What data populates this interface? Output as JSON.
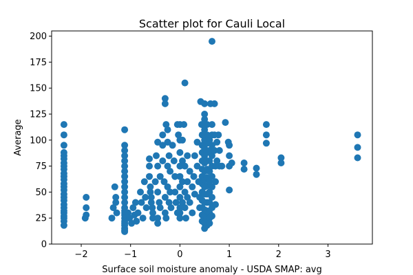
{
  "chart_data": {
    "type": "scatter",
    "title": "Scatter plot for Cauli Local",
    "xlabel": "Surface soil moisture anomaly  - USDA SMAP: avg",
    "ylabel": "Average",
    "xlim": [
      -2.6,
      3.9
    ],
    "ylim": [
      0,
      205
    ],
    "xticks": [
      -2,
      -1,
      0,
      1,
      2,
      3
    ],
    "xtick_labels": [
      "−2",
      "−1",
      "0",
      "1",
      "2",
      "3"
    ],
    "yticks": [
      0,
      25,
      50,
      75,
      100,
      125,
      150,
      175,
      200
    ],
    "ytick_labels": [
      "0",
      "25",
      "50",
      "75",
      "100",
      "125",
      "150",
      "175",
      "200"
    ],
    "grid": false,
    "marker_color": "#1f77b4",
    "series": [
      {
        "points": [
          [
            -2.35,
            115
          ],
          [
            -2.35,
            105
          ],
          [
            -2.35,
            95
          ],
          [
            -2.35,
            88
          ],
          [
            -2.35,
            85
          ],
          [
            -2.35,
            82
          ],
          [
            -2.35,
            78
          ],
          [
            -2.35,
            75
          ],
          [
            -2.35,
            72
          ],
          [
            -2.35,
            68
          ],
          [
            -2.35,
            65
          ],
          [
            -2.35,
            62
          ],
          [
            -2.35,
            58
          ],
          [
            -2.35,
            55
          ],
          [
            -2.35,
            52
          ],
          [
            -2.35,
            48
          ],
          [
            -2.35,
            45
          ],
          [
            -2.35,
            42
          ],
          [
            -2.35,
            38
          ],
          [
            -2.35,
            35
          ],
          [
            -2.35,
            32
          ],
          [
            -2.35,
            30
          ],
          [
            -2.35,
            27
          ],
          [
            -2.35,
            25
          ],
          [
            -2.35,
            22
          ],
          [
            -2.35,
            18
          ],
          [
            -1.9,
            45
          ],
          [
            -1.9,
            35
          ],
          [
            -1.9,
            28
          ],
          [
            -1.92,
            25
          ],
          [
            -1.38,
            25
          ],
          [
            -1.35,
            35
          ],
          [
            -1.32,
            55
          ],
          [
            -1.3,
            45
          ],
          [
            -1.3,
            40
          ],
          [
            -1.28,
            30
          ],
          [
            -1.12,
            110
          ],
          [
            -1.12,
            95
          ],
          [
            -1.12,
            90
          ],
          [
            -1.12,
            85
          ],
          [
            -1.12,
            80
          ],
          [
            -1.12,
            75
          ],
          [
            -1.12,
            70
          ],
          [
            -1.12,
            65
          ],
          [
            -1.12,
            60
          ],
          [
            -1.12,
            55
          ],
          [
            -1.12,
            50
          ],
          [
            -1.12,
            45
          ],
          [
            -1.12,
            40
          ],
          [
            -1.12,
            35
          ],
          [
            -1.12,
            32
          ],
          [
            -1.12,
            30
          ],
          [
            -1.12,
            28
          ],
          [
            -1.12,
            25
          ],
          [
            -1.12,
            22
          ],
          [
            -1.12,
            20
          ],
          [
            -1.12,
            18
          ],
          [
            -1.12,
            15
          ],
          [
            -1.12,
            13
          ],
          [
            -1.12,
            12
          ],
          [
            -1.05,
            30
          ],
          [
            -1.02,
            25
          ],
          [
            -0.98,
            20
          ],
          [
            -0.95,
            35
          ],
          [
            -0.92,
            28
          ],
          [
            -0.9,
            40
          ],
          [
            -0.88,
            22
          ],
          [
            -0.85,
            30
          ],
          [
            -0.8,
            50
          ],
          [
            -0.78,
            40
          ],
          [
            -0.75,
            25
          ],
          [
            -0.72,
            60
          ],
          [
            -0.7,
            45
          ],
          [
            -0.68,
            35
          ],
          [
            -0.62,
            82
          ],
          [
            -0.62,
            75
          ],
          [
            -0.62,
            65
          ],
          [
            -0.6,
            55
          ],
          [
            -0.6,
            50
          ],
          [
            -0.58,
            45
          ],
          [
            -0.58,
            40
          ],
          [
            -0.56,
            35
          ],
          [
            -0.55,
            30
          ],
          [
            -0.55,
            25
          ],
          [
            -0.5,
            60
          ],
          [
            -0.48,
            85
          ],
          [
            -0.45,
            98
          ],
          [
            -0.45,
            75
          ],
          [
            -0.45,
            50
          ],
          [
            -0.45,
            25
          ],
          [
            -0.45,
            20
          ],
          [
            -0.42,
            40
          ],
          [
            -0.4,
            65
          ],
          [
            -0.4,
            35
          ],
          [
            -0.35,
            105
          ],
          [
            -0.35,
            95
          ],
          [
            -0.35,
            80
          ],
          [
            -0.32,
            60
          ],
          [
            -0.3,
            45
          ],
          [
            -0.3,
            30
          ],
          [
            -0.28,
            25
          ],
          [
            -0.25,
            75
          ],
          [
            -0.25,
            55
          ],
          [
            -0.22,
            40
          ],
          [
            -0.3,
            140
          ],
          [
            -0.3,
            135
          ],
          [
            -0.28,
            115
          ],
          [
            -0.25,
            110
          ],
          [
            -0.25,
            98
          ],
          [
            -0.22,
            85
          ],
          [
            -0.2,
            70
          ],
          [
            -0.2,
            50
          ],
          [
            -0.18,
            35
          ],
          [
            -0.15,
            95
          ],
          [
            -0.12,
            80
          ],
          [
            -0.1,
            65
          ],
          [
            -0.1,
            50
          ],
          [
            -0.08,
            40
          ],
          [
            -0.05,
            30
          ],
          [
            -0.05,
            115
          ],
          [
            -0.03,
            105
          ],
          [
            0.0,
            115
          ],
          [
            0.0,
            100
          ],
          [
            0.0,
            88
          ],
          [
            0.0,
            75
          ],
          [
            0.0,
            65
          ],
          [
            0.0,
            55
          ],
          [
            0.0,
            45
          ],
          [
            0.0,
            35
          ],
          [
            0.0,
            30
          ],
          [
            0.0,
            25
          ],
          [
            0.05,
            100
          ],
          [
            0.05,
            80
          ],
          [
            0.05,
            60
          ],
          [
            0.05,
            40
          ],
          [
            0.08,
            115
          ],
          [
            0.1,
            155
          ],
          [
            0.1,
            75
          ],
          [
            0.1,
            50
          ],
          [
            0.1,
            35
          ],
          [
            0.12,
            25
          ],
          [
            0.15,
            85
          ],
          [
            0.15,
            60
          ],
          [
            0.15,
            45
          ],
          [
            0.2,
            70
          ],
          [
            0.2,
            40
          ],
          [
            0.25,
            55
          ],
          [
            0.25,
            30
          ],
          [
            0.28,
            65
          ],
          [
            0.3,
            85
          ],
          [
            0.3,
            48
          ],
          [
            0.35,
            98
          ],
          [
            0.35,
            75
          ],
          [
            0.38,
            60
          ],
          [
            0.4,
            45
          ],
          [
            0.4,
            35
          ],
          [
            0.42,
            137
          ],
          [
            0.44,
            115
          ],
          [
            0.45,
            105
          ],
          [
            0.45,
            95
          ],
          [
            0.45,
            88
          ],
          [
            0.45,
            80
          ],
          [
            0.45,
            72
          ],
          [
            0.45,
            65
          ],
          [
            0.45,
            58
          ],
          [
            0.45,
            50
          ],
          [
            0.45,
            42
          ],
          [
            0.45,
            35
          ],
          [
            0.45,
            28
          ],
          [
            0.45,
            22
          ],
          [
            0.5,
            135
          ],
          [
            0.5,
            125
          ],
          [
            0.5,
            120
          ],
          [
            0.5,
            110
          ],
          [
            0.5,
            100
          ],
          [
            0.5,
            92
          ],
          [
            0.5,
            85
          ],
          [
            0.5,
            78
          ],
          [
            0.5,
            70
          ],
          [
            0.5,
            62
          ],
          [
            0.5,
            55
          ],
          [
            0.5,
            48
          ],
          [
            0.5,
            40
          ],
          [
            0.5,
            33
          ],
          [
            0.5,
            27
          ],
          [
            0.5,
            20
          ],
          [
            0.5,
            15
          ],
          [
            0.55,
            115
          ],
          [
            0.55,
            105
          ],
          [
            0.55,
            97
          ],
          [
            0.55,
            88
          ],
          [
            0.55,
            80
          ],
          [
            0.55,
            72
          ],
          [
            0.55,
            64
          ],
          [
            0.55,
            56
          ],
          [
            0.55,
            48
          ],
          [
            0.55,
            40
          ],
          [
            0.55,
            32
          ],
          [
            0.55,
            25
          ],
          [
            0.55,
            18
          ],
          [
            0.6,
            100
          ],
          [
            0.6,
            90
          ],
          [
            0.6,
            80
          ],
          [
            0.6,
            70
          ],
          [
            0.6,
            60
          ],
          [
            0.6,
            50
          ],
          [
            0.6,
            40
          ],
          [
            0.6,
            30
          ],
          [
            0.6,
            25
          ],
          [
            0.6,
            20
          ],
          [
            0.62,
            135
          ],
          [
            0.65,
            195
          ],
          [
            0.65,
            115
          ],
          [
            0.65,
            105
          ],
          [
            0.65,
            95
          ],
          [
            0.65,
            85
          ],
          [
            0.65,
            75
          ],
          [
            0.65,
            65
          ],
          [
            0.65,
            55
          ],
          [
            0.65,
            45
          ],
          [
            0.65,
            35
          ],
          [
            0.65,
            27
          ],
          [
            0.7,
            135
          ],
          [
            0.7,
            105
          ],
          [
            0.7,
            90
          ],
          [
            0.72,
            75
          ],
          [
            0.72,
            60
          ],
          [
            0.72,
            38
          ],
          [
            0.75,
            98
          ],
          [
            0.75,
            80
          ],
          [
            0.78,
            105
          ],
          [
            0.8,
            90
          ],
          [
            0.8,
            75
          ],
          [
            0.85,
            75
          ],
          [
            0.92,
            117
          ],
          [
            0.98,
            98
          ],
          [
            1.0,
            95
          ],
          [
            1.0,
            85
          ],
          [
            1.0,
            75
          ],
          [
            1.0,
            52
          ],
          [
            1.05,
            78
          ],
          [
            1.3,
            78
          ],
          [
            1.3,
            72
          ],
          [
            1.55,
            73
          ],
          [
            1.55,
            67
          ],
          [
            1.75,
            115
          ],
          [
            1.75,
            105
          ],
          [
            1.75,
            97
          ],
          [
            2.05,
            83
          ],
          [
            2.05,
            78
          ],
          [
            3.6,
            105
          ],
          [
            3.6,
            93
          ],
          [
            3.6,
            83
          ]
        ]
      }
    ]
  }
}
